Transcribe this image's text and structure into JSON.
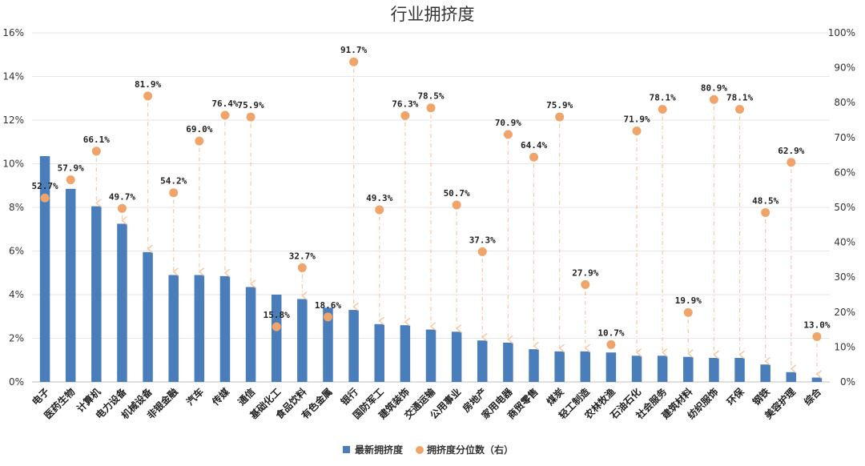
{
  "chart_data": {
    "type": "bar+scatter",
    "title": "行业拥挤度",
    "categories": [
      "电子",
      "医药生物",
      "计算机",
      "电力设备",
      "机械设备",
      "非银金融",
      "汽车",
      "传媒",
      "通信",
      "基础化工",
      "食品饮料",
      "有色金属",
      "银行",
      "国防军工",
      "建筑装饰",
      "交通运输",
      "公用事业",
      "房地产",
      "家用电器",
      "商贸零售",
      "煤炭",
      "轻工制造",
      "农林牧渔",
      "石油石化",
      "社会服务",
      "建筑材料",
      "纺织服饰",
      "环保",
      "钢铁",
      "美容护理",
      "综合"
    ],
    "series": [
      {
        "name": "最新拥挤度",
        "type": "bar",
        "axis": "left",
        "values": [
          10.35,
          8.85,
          8.05,
          7.25,
          5.95,
          4.9,
          4.9,
          4.85,
          4.35,
          4.0,
          3.8,
          3.4,
          3.3,
          2.65,
          2.6,
          2.4,
          2.3,
          1.9,
          1.8,
          1.5,
          1.4,
          1.4,
          1.35,
          1.2,
          1.2,
          1.15,
          1.1,
          1.1,
          0.8,
          0.45,
          0.2
        ]
      },
      {
        "name": "拥挤度分位数（右）",
        "type": "scatter",
        "axis": "right",
        "values": [
          52.7,
          57.9,
          66.1,
          49.7,
          81.9,
          54.2,
          69.0,
          76.4,
          75.9,
          15.8,
          32.7,
          18.6,
          91.7,
          49.3,
          76.3,
          78.5,
          50.7,
          37.3,
          70.9,
          64.4,
          75.9,
          27.9,
          10.7,
          71.9,
          78.1,
          19.9,
          80.9,
          78.1,
          48.5,
          62.9,
          13.0
        ],
        "labels": [
          "52.7%",
          "57.9%",
          "66.1%",
          "49.7%",
          "81.9%",
          "54.2%",
          "69.0%",
          "76.4%",
          "75.9%",
          "15.8%",
          "32.7%",
          "18.6%",
          "91.7%",
          "49.3%",
          "76.3%",
          "78.5%",
          "50.7%",
          "37.3%",
          "70.9%",
          "64.4%",
          "75.9%",
          "27.9%",
          "10.7%",
          "71.9%",
          "78.1%",
          "19.9%",
          "80.9%",
          "78.1%",
          "48.5%",
          "62.9%",
          "13.0%"
        ]
      }
    ],
    "y_left": {
      "min": 0,
      "max": 16,
      "ticks": [
        "0%",
        "2%",
        "4%",
        "6%",
        "8%",
        "10%",
        "12%",
        "14%",
        "16%"
      ]
    },
    "y_right": {
      "min": 0,
      "max": 100,
      "ticks": [
        "0%",
        "10%",
        "20%",
        "30%",
        "40%",
        "50%",
        "60%",
        "70%",
        "80%",
        "90%",
        "100%"
      ]
    },
    "grid": true,
    "legend_position": "bottom",
    "colors": {
      "bar": "#4a7ebb",
      "dot": "#f0a46a",
      "arrow": "#f7c8a4"
    }
  }
}
